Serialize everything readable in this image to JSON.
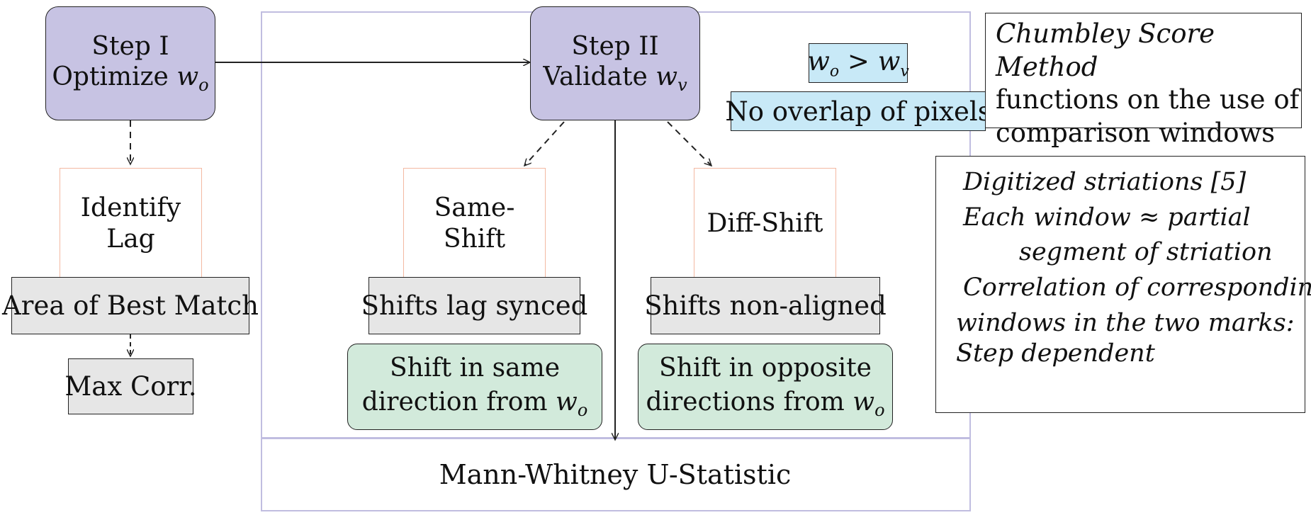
{
  "step1": {
    "line1": "Step I",
    "line2": "Optimize",
    "var": "w",
    "sub": "o"
  },
  "step2": {
    "line1": "Step II",
    "line2": "Validate",
    "var": "w",
    "sub": "v"
  },
  "identify_lag": {
    "line1": "Identify",
    "line2": "Lag"
  },
  "area_best_match": "Area of Best Match",
  "max_corr": "Max Corr.",
  "same_shift": "Same-Shift",
  "diff_shift": "Diff-Shift",
  "shifts_synced": "Shifts lag synced",
  "shifts_nonaligned": "Shifts non-aligned",
  "shift_same": {
    "line1": "Shift in same",
    "line2": "direction from",
    "var": "w",
    "sub": "o"
  },
  "shift_opposite": {
    "line1": "Shift in opposite",
    "line2": "directions from",
    "var": "w",
    "sub": "o"
  },
  "condition": {
    "left_var": "w",
    "left_sub": "o",
    "op": ">",
    "right_var": "w",
    "right_sub": "v"
  },
  "no_overlap": "No overlap of pixels",
  "note1": {
    "line1": "Chumbley Score Method",
    "line2": "functions on the use of",
    "line3": "comparison windows"
  },
  "note2": {
    "line1": "Digitized striations [5]",
    "line2": "Each window ≈ partial",
    "line3": "segment of striation",
    "line4": "Correlation of corresponding",
    "line5": "windows in the two marks:",
    "line6": "Step dependent"
  },
  "mann_whitney": "Mann-Whitney U-Statistic",
  "colors": {
    "step_fill": "#c7c3e3",
    "gray_fill": "#e6e6e6",
    "green_fill": "#d2eadb",
    "cyan_fill": "#c8e9f7",
    "orange_border": "#f3b9a2",
    "frame_border": "#c0bde0"
  }
}
